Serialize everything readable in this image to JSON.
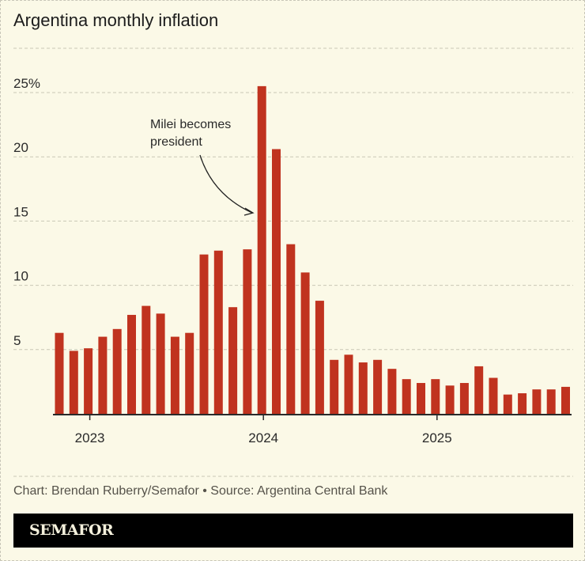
{
  "chart_data": {
    "type": "bar",
    "title": "Argentina monthly inflation",
    "categories": [
      "Oct 2022",
      "Nov 2022",
      "Dec 2022",
      "Jan 2023",
      "Feb 2023",
      "Mar 2023",
      "Apr 2023",
      "May 2023",
      "Jun 2023",
      "Jul 2023",
      "Aug 2023",
      "Sep 2023",
      "Oct 2023",
      "Nov 2023",
      "Dec 2023",
      "Jan 2024",
      "Feb 2024",
      "Mar 2024",
      "Apr 2024",
      "May 2024",
      "Jun 2024",
      "Jul 2024",
      "Aug 2024",
      "Sep 2024",
      "Oct 2024",
      "Nov 2024",
      "Dec 2024",
      "Jan 2025",
      "Feb 2025",
      "Mar 2025",
      "Apr 2025",
      "May 2025",
      "Jun 2025",
      "Jul 2025",
      "Aug 2025",
      "Sep 2025"
    ],
    "values": [
      6.3,
      4.9,
      5.1,
      6.0,
      6.6,
      7.7,
      8.4,
      7.8,
      6.0,
      6.3,
      12.4,
      12.7,
      8.3,
      12.8,
      25.5,
      20.6,
      13.2,
      11.0,
      8.8,
      4.2,
      4.6,
      4.0,
      4.2,
      3.5,
      2.7,
      2.4,
      2.7,
      2.2,
      2.4,
      3.7,
      2.8,
      1.5,
      1.6,
      1.9,
      1.9,
      2.1
    ],
    "ylim": [
      0,
      28
    ],
    "yticks": [
      5,
      10,
      15,
      20,
      25
    ],
    "ytick_labels": [
      "5",
      "10",
      "15",
      "20",
      "25%"
    ],
    "xticks": [
      {
        "label": "2023",
        "at": "Dec 2022"
      },
      {
        "label": "2024",
        "at": "Dec 2023"
      },
      {
        "label": "2025",
        "at": "Dec 2024"
      }
    ],
    "grid": "horizontal dashed",
    "bar_color": "#c0331f",
    "annotation": {
      "text_lines": [
        "Milei becomes",
        "president"
      ],
      "points_to": "Dec 2023"
    }
  },
  "credit": "Chart: Brendan Ruberry/Semafor • Source: Argentina Central Bank",
  "brand": "SEMAFOR"
}
